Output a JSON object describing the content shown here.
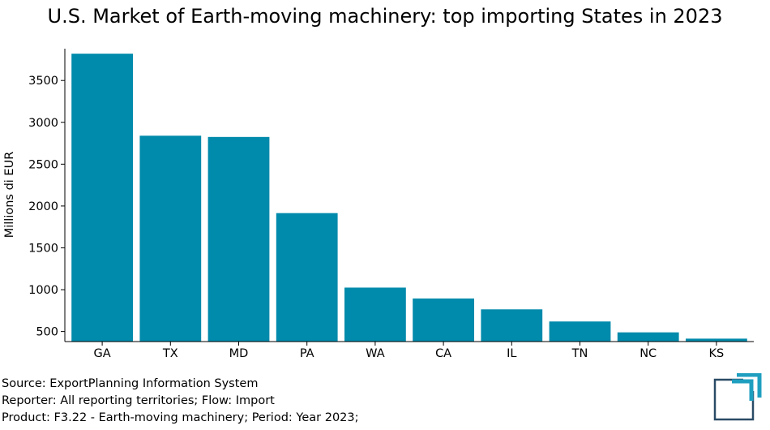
{
  "chart_data": {
    "type": "bar",
    "title": "U.S. Market of Earth-moving machinery: top importing States in 2023",
    "xlabel": "",
    "ylabel": "Millions di EUR",
    "categories": [
      "GA",
      "TX",
      "MD",
      "PA",
      "WA",
      "CA",
      "IL",
      "TN",
      "NC",
      "KS"
    ],
    "values": [
      3820,
      2840,
      2825,
      1915,
      1025,
      895,
      765,
      620,
      490,
      415
    ],
    "ylim": [
      380,
      3880
    ],
    "yticks": [
      500,
      1000,
      1500,
      2000,
      2500,
      3000,
      3500
    ],
    "bar_color": "#008aab",
    "grid": false
  },
  "footer": {
    "source": "Source: ExportPlanning Information System",
    "reporter": "Reporter: All reporting territories; Flow: Import",
    "product": "Product: F3.22 - Earth-moving machinery; Period: Year 2023;"
  },
  "logo": {
    "icon": "exportplanning-logo-icon",
    "color": "#1f9fc0"
  }
}
